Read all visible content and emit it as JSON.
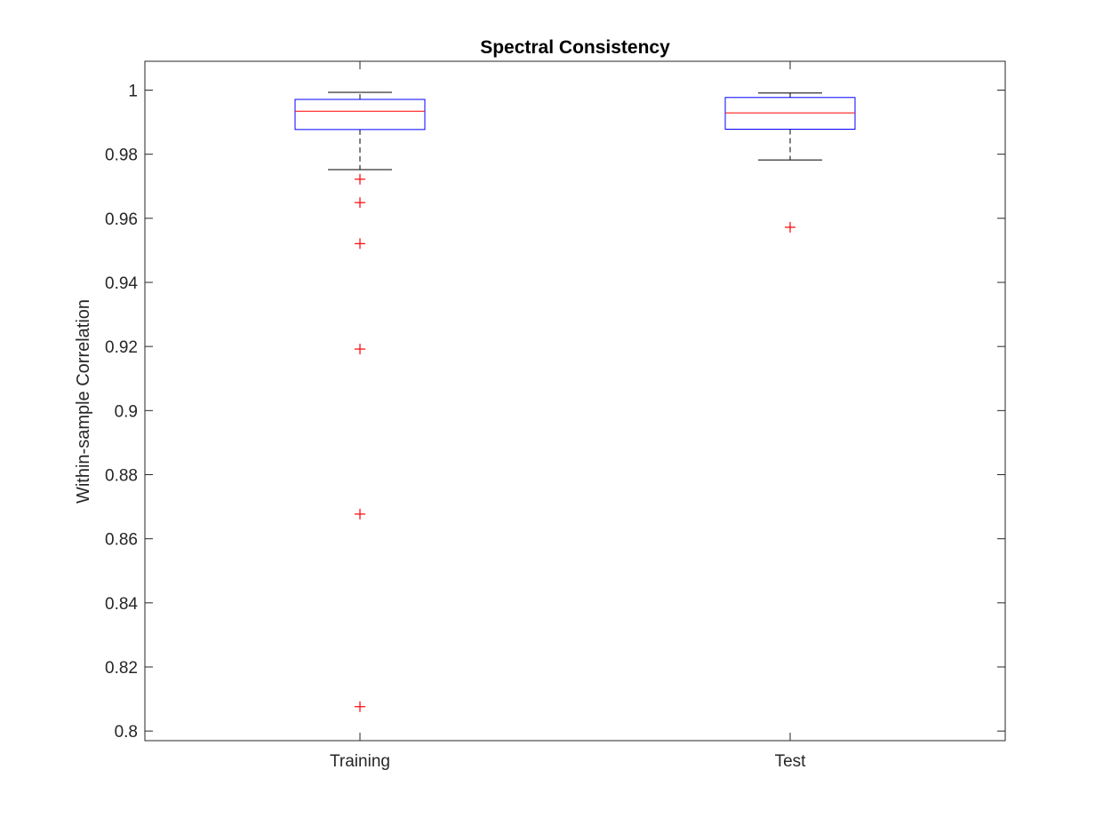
{
  "chart_data": {
    "type": "box",
    "title": "Spectral Consistency",
    "xlabel": "",
    "ylabel": "Within-sample Correlation",
    "categories": [
      "Training",
      "Test"
    ],
    "ylim": [
      0.797,
      1.009
    ],
    "yticks": [
      0.8,
      0.82,
      0.84,
      0.86,
      0.88,
      0.9,
      0.92,
      0.94,
      0.96,
      0.98,
      1
    ],
    "ytick_labels": [
      "0.8",
      "0.82",
      "0.84",
      "0.86",
      "0.88",
      "0.9",
      "0.92",
      "0.94",
      "0.96",
      "0.98",
      "1"
    ],
    "grid": false,
    "boxes": [
      {
        "category": "Training",
        "whisker_low": 0.9752,
        "q1": 0.9877,
        "median": 0.9934,
        "q3": 0.9971,
        "whisker_high": 0.9993,
        "outliers": [
          0.9722,
          0.9649,
          0.9521,
          0.9192,
          0.8677,
          0.8076
        ]
      },
      {
        "category": "Test",
        "whisker_low": 0.9782,
        "q1": 0.9878,
        "median": 0.9929,
        "q3": 0.9977,
        "whisker_high": 0.9991,
        "outliers": [
          0.9572
        ]
      }
    ],
    "colors": {
      "box": "#0000ff",
      "median": "#ff0000",
      "whisker": "#000000",
      "outlier": "#ff0000",
      "axis": "#262626"
    }
  }
}
